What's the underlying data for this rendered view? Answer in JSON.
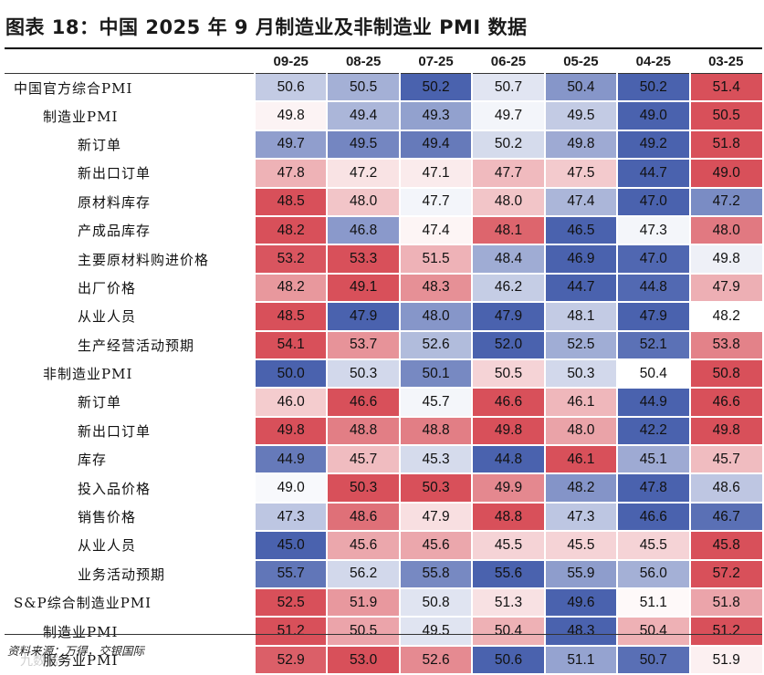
{
  "title": "图表 18：中国 2025 年 9 月制造业及非制造业 PMI 数据",
  "columns": [
    "09-25",
    "08-25",
    "07-25",
    "06-25",
    "05-25",
    "04-25",
    "03-25"
  ],
  "rows": [
    {
      "label": "中国官方综合PMI",
      "level": 0,
      "values": [
        "50.6",
        "50.5",
        "50.2",
        "50.7",
        "50.4",
        "50.2",
        "51.4"
      ]
    },
    {
      "label": "制造业PMI",
      "level": 1,
      "values": [
        "49.8",
        "49.4",
        "49.3",
        "49.7",
        "49.5",
        "49.0",
        "50.5"
      ]
    },
    {
      "label": "新订单",
      "level": 2,
      "values": [
        "49.7",
        "49.5",
        "49.4",
        "50.2",
        "49.8",
        "49.2",
        "51.8"
      ]
    },
    {
      "label": "新出口订单",
      "level": 2,
      "values": [
        "47.8",
        "47.2",
        "47.1",
        "47.7",
        "47.5",
        "44.7",
        "49.0"
      ]
    },
    {
      "label": "原材料库存",
      "level": 2,
      "values": [
        "48.5",
        "48.0",
        "47.7",
        "48.0",
        "47.4",
        "47.0",
        "47.2"
      ]
    },
    {
      "label": "产成品库存",
      "level": 2,
      "values": [
        "48.2",
        "46.8",
        "47.4",
        "48.1",
        "46.5",
        "47.3",
        "48.0"
      ]
    },
    {
      "label": "主要原材料购进价格",
      "level": 2,
      "values": [
        "53.2",
        "53.3",
        "51.5",
        "48.4",
        "46.9",
        "47.0",
        "49.8"
      ]
    },
    {
      "label": "出厂价格",
      "level": 2,
      "values": [
        "48.2",
        "49.1",
        "48.3",
        "46.2",
        "44.7",
        "44.8",
        "47.9"
      ]
    },
    {
      "label": "从业人员",
      "level": 2,
      "values": [
        "48.5",
        "47.9",
        "48.0",
        "47.9",
        "48.1",
        "47.9",
        "48.2"
      ]
    },
    {
      "label": "生产经营活动预期",
      "level": 2,
      "values": [
        "54.1",
        "53.7",
        "52.6",
        "52.0",
        "52.5",
        "52.1",
        "53.8"
      ]
    },
    {
      "label": "非制造业PMI",
      "level": 1,
      "values": [
        "50.0",
        "50.3",
        "50.1",
        "50.5",
        "50.3",
        "50.4",
        "50.8"
      ]
    },
    {
      "label": "新订单",
      "level": 2,
      "values": [
        "46.0",
        "46.6",
        "45.7",
        "46.6",
        "46.1",
        "44.9",
        "46.6"
      ]
    },
    {
      "label": "新出口订单",
      "level": 2,
      "values": [
        "49.8",
        "48.8",
        "48.8",
        "49.8",
        "48.0",
        "42.2",
        "49.8"
      ]
    },
    {
      "label": "库存",
      "level": 2,
      "values": [
        "44.9",
        "45.7",
        "45.3",
        "44.8",
        "46.1",
        "45.1",
        "45.7"
      ]
    },
    {
      "label": "投入品价格",
      "level": 2,
      "values": [
        "49.0",
        "50.3",
        "50.3",
        "49.9",
        "48.2",
        "47.8",
        "48.6"
      ]
    },
    {
      "label": "销售价格",
      "level": 2,
      "values": [
        "47.3",
        "48.6",
        "47.9",
        "48.8",
        "47.3",
        "46.6",
        "46.7"
      ]
    },
    {
      "label": "从业人员",
      "level": 2,
      "values": [
        "45.0",
        "45.6",
        "45.6",
        "45.5",
        "45.5",
        "45.5",
        "45.8"
      ]
    },
    {
      "label": "业务活动预期",
      "level": 2,
      "values": [
        "55.7",
        "56.2",
        "55.8",
        "55.6",
        "55.9",
        "56.0",
        "57.2"
      ]
    },
    {
      "label": "S&P综合制造业PMI",
      "level": 0,
      "values": [
        "52.5",
        "51.9",
        "50.8",
        "51.3",
        "49.6",
        "51.1",
        "51.8"
      ]
    },
    {
      "label": "制造业PMI",
      "level": 1,
      "values": [
        "51.2",
        "50.5",
        "49.5",
        "50.4",
        "48.3",
        "50.4",
        "51.2"
      ]
    },
    {
      "label": "服务业PMI",
      "level": 1,
      "values": [
        "52.9",
        "53.0",
        "52.6",
        "50.6",
        "51.1",
        "50.7",
        "51.9"
      ]
    }
  ],
  "colors": {
    "cold": "#4a62ae",
    "neutral": "#ffffff",
    "hot": "#d8505a"
  },
  "source": "资料来源：万得，交银国际",
  "watermark": "九数据"
}
